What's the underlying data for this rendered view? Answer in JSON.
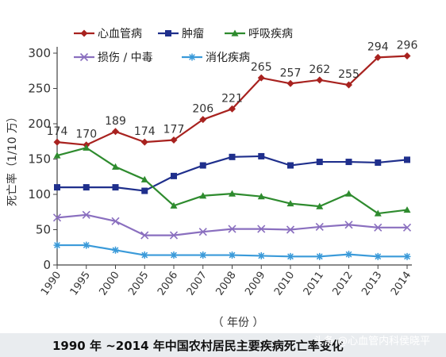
{
  "chart_data": {
    "type": "line",
    "x": [
      "1990",
      "1995",
      "2000",
      "2005",
      "2006",
      "2007",
      "2008",
      "2009",
      "2010",
      "2011",
      "2012",
      "2013",
      "2014"
    ],
    "ylabel": "死亡率（1/10 万）",
    "xlabel": "（ 年份 ）",
    "ylim": [
      0,
      300
    ],
    "yticks": [
      0,
      50,
      100,
      150,
      200,
      250,
      300
    ],
    "grid": false,
    "legend_position": "top-left",
    "series": [
      {
        "name": "心血管病",
        "color": "#a8221f",
        "marker": "diamond",
        "values": [
          174,
          170,
          189,
          174,
          177,
          206,
          221,
          265,
          257,
          262,
          255,
          294,
          296
        ],
        "labels": [
          "174",
          "170",
          "189",
          "174",
          "177",
          "206",
          "221",
          "265",
          "257",
          "262",
          "255",
          "294",
          "296"
        ]
      },
      {
        "name": "肿瘤",
        "color": "#1f2f8c",
        "marker": "square",
        "values": [
          110,
          110,
          110,
          105,
          126,
          141,
          153,
          154,
          141,
          146,
          146,
          145,
          149
        ]
      },
      {
        "name": "呼吸疾病",
        "color": "#2e8b2e",
        "marker": "triangle",
        "values": [
          155,
          166,
          139,
          121,
          84,
          98,
          101,
          97,
          87,
          83,
          101,
          73,
          78
        ]
      },
      {
        "name": "损伤 / 中毒",
        "color": "#8a6fbf",
        "marker": "x",
        "values": [
          67,
          71,
          62,
          42,
          42,
          47,
          51,
          51,
          50,
          54,
          57,
          53,
          53
        ]
      },
      {
        "name": "消化疾病",
        "color": "#3a9ad9",
        "marker": "star",
        "values": [
          28,
          28,
          21,
          14,
          14,
          14,
          14,
          13,
          12,
          12,
          15,
          12,
          12
        ]
      }
    ]
  },
  "caption": "1990 年 ~2014 年中国农村居民主要疾病死亡率变化",
  "watermark": "头条 @心血管内科侯晓平"
}
